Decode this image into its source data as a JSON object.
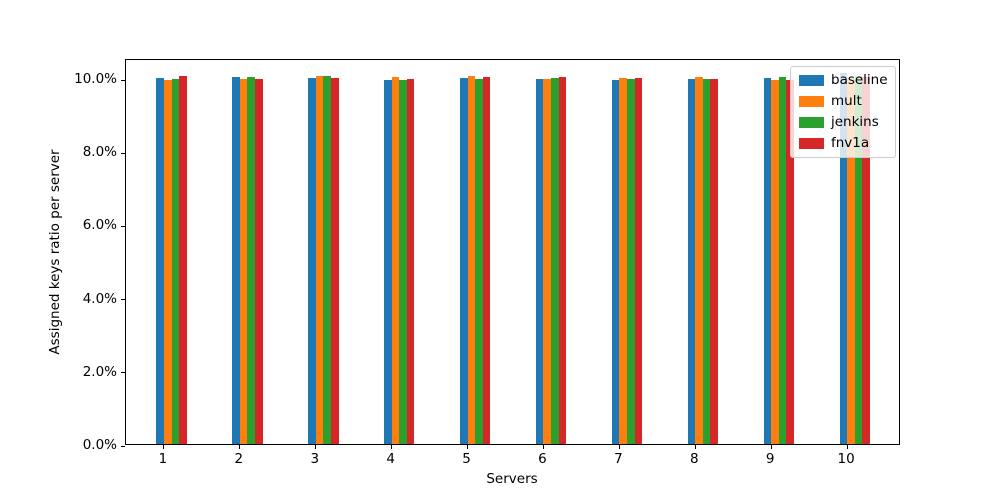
{
  "figure": {
    "xlabel": "Servers",
    "ylabel": "Assigned keys ratio per server"
  },
  "chart_data": {
    "type": "bar",
    "title": "",
    "xlabel": "Servers",
    "ylabel": "Assigned keys ratio per server",
    "unit": "percent",
    "grid": false,
    "legend_position": "upper right",
    "categories": [
      "1",
      "2",
      "3",
      "4",
      "5",
      "6",
      "7",
      "8",
      "9",
      "10"
    ],
    "series": [
      {
        "name": "baseline",
        "color": "#1f77b4",
        "values": [
          10.0,
          10.03,
          10.0,
          9.95,
          10.0,
          9.97,
          9.95,
          9.97,
          10.0,
          10.13
        ]
      },
      {
        "name": "mult",
        "color": "#ff7f0e",
        "values": [
          9.95,
          9.97,
          10.05,
          10.03,
          10.05,
          9.97,
          10.0,
          10.03,
          9.95,
          10.0
        ]
      },
      {
        "name": "jenkins",
        "color": "#2ca02c",
        "values": [
          9.97,
          10.03,
          10.05,
          9.95,
          9.97,
          10.0,
          9.97,
          9.97,
          10.03,
          10.06
        ]
      },
      {
        "name": "fnv1a",
        "color": "#d62728",
        "values": [
          10.05,
          9.97,
          10.0,
          9.97,
          10.03,
          10.03,
          10.0,
          9.97,
          9.95,
          10.03
        ]
      }
    ],
    "bar_width_units": 0.1,
    "xlim": [
      0.5,
      10.71
    ],
    "ylim": [
      0,
      10.55
    ],
    "yticks": {
      "values": [
        0,
        2,
        4,
        6,
        8,
        10
      ],
      "labels": [
        "0.0%",
        "2.0%",
        "4.0%",
        "6.0%",
        "8.0%",
        "10.0%"
      ]
    },
    "xticks": {
      "values": [
        1,
        2,
        3,
        4,
        5,
        6,
        7,
        8,
        9,
        10
      ],
      "labels": [
        "1",
        "2",
        "3",
        "4",
        "5",
        "6",
        "7",
        "8",
        "9",
        "10"
      ]
    }
  }
}
